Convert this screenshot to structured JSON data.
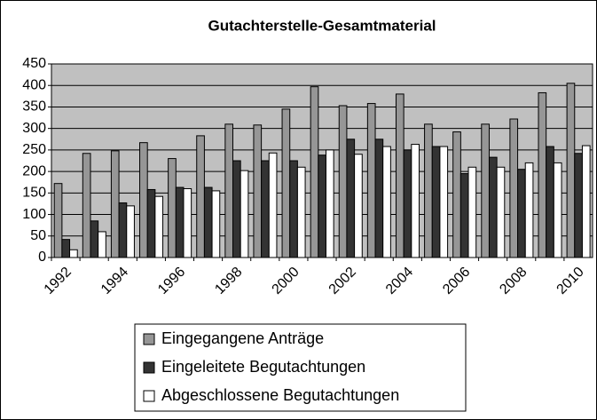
{
  "chart_data": {
    "type": "bar",
    "title": "Gutachterstelle-Gesamtmaterial",
    "categories": [
      "1992",
      null,
      "1994",
      null,
      "1996",
      null,
      "1998",
      null,
      "2000",
      null,
      "2002",
      null,
      "2004",
      null,
      "2006",
      null,
      "2008",
      null,
      "2010"
    ],
    "series": [
      {
        "name": "Eingegangene Anträge",
        "color": "#969696",
        "values": [
          172,
          242,
          248,
          267,
          230,
          283,
          310,
          308,
          345,
          397,
          353,
          358,
          380,
          310,
          292,
          310,
          322,
          383,
          405
        ]
      },
      {
        "name": "Eingeleitete Begutachtungen",
        "color": "#333333",
        "values": [
          42,
          85,
          127,
          158,
          163,
          163,
          225,
          225,
          225,
          238,
          275,
          275,
          250,
          258,
          195,
          233,
          205,
          258,
          242
        ]
      },
      {
        "name": "Abgeschlossene Begutachtungen",
        "color": "#ffffff",
        "values": [
          18,
          60,
          120,
          142,
          160,
          155,
          202,
          243,
          210,
          250,
          240,
          258,
          263,
          258,
          210,
          210,
          220,
          220,
          260
        ]
      }
    ],
    "ylim": [
      0,
      450
    ],
    "yticks": [
      0,
      50,
      100,
      150,
      200,
      250,
      300,
      350,
      400,
      450
    ],
    "grid": true,
    "legend": "bottom",
    "plot_background": "#c0c0c0"
  }
}
